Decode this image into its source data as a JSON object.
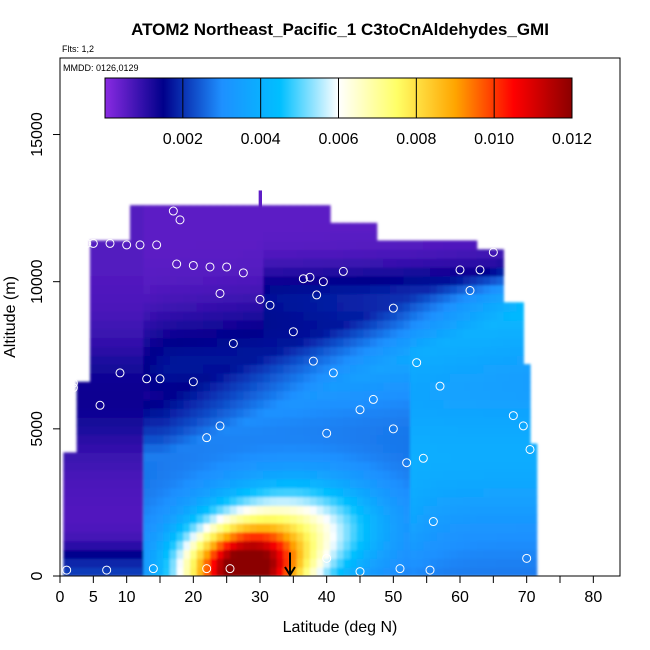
{
  "chart_data": {
    "type": "heatmap",
    "title": "ATOM2 Northeast_Pacific_1 C3toCnAldehydes_GMI",
    "flights_label": "Flts: 1,2",
    "mmdd_label": "MMDD: 0126,0129",
    "xlabel": "Latitude (deg N)",
    "ylabel": "Altitude (m)",
    "xlim": [
      0,
      84
    ],
    "ylim": [
      0,
      17600
    ],
    "x_ticks_major": [
      0,
      10,
      20,
      30,
      40,
      50,
      60,
      70,
      80
    ],
    "x_ticks_minor": [
      5,
      15,
      25,
      35,
      45,
      55,
      65,
      75
    ],
    "x_tick_labels": [
      "0",
      "5",
      "10",
      "20",
      "30",
      "40",
      "50",
      "60",
      "70",
      "80"
    ],
    "x_tick_label_values": [
      0,
      5,
      10,
      20,
      30,
      40,
      50,
      60,
      70,
      80
    ],
    "y_ticks": [
      0,
      5000,
      10000,
      15000
    ],
    "y_tick_labels": [
      "0",
      "5000",
      "10000",
      "15000"
    ],
    "colorbar": {
      "range": [
        0.0,
        0.012
      ],
      "ticks": [
        0.002,
        0.004,
        0.006,
        0.008,
        0.01,
        0.012
      ],
      "tick_labels": [
        "0.002",
        "0.004",
        "0.006",
        "0.008",
        "0.010",
        "0.012"
      ],
      "colors": [
        "#8a2be2",
        "#00008b",
        "#1e90ff",
        "#00bfff",
        "#ffffff",
        "#ffff66",
        "#ffa500",
        "#ff0000",
        "#8b0000"
      ]
    },
    "marker_latitude": 34.5,
    "grid": false,
    "legend": "colorbar top",
    "flight_points": [
      [
        1,
        200
      ],
      [
        7,
        200
      ],
      [
        14,
        250
      ],
      [
        22,
        250
      ],
      [
        25.5,
        250
      ],
      [
        40,
        600
      ],
      [
        45,
        150
      ],
      [
        51,
        250
      ],
      [
        55.5,
        200
      ],
      [
        70,
        600
      ],
      [
        2,
        6400
      ],
      [
        2,
        6550
      ],
      [
        6,
        5800
      ],
      [
        9,
        6900
      ],
      [
        13,
        6700
      ],
      [
        15,
        6700
      ],
      [
        20,
        6600
      ],
      [
        22,
        4700
      ],
      [
        24,
        5100
      ],
      [
        40,
        4850
      ],
      [
        45,
        5650
      ],
      [
        47,
        6000
      ],
      [
        50,
        5000
      ],
      [
        52,
        3850
      ],
      [
        54.5,
        4000
      ],
      [
        56,
        1850
      ],
      [
        4,
        11300
      ],
      [
        5,
        11300
      ],
      [
        7.5,
        11300
      ],
      [
        10,
        11250
      ],
      [
        12,
        11250
      ],
      [
        14.5,
        11250
      ],
      [
        17,
        12400
      ],
      [
        18,
        12100
      ],
      [
        17.5,
        10600
      ],
      [
        20,
        10550
      ],
      [
        22.5,
        10500
      ],
      [
        24,
        9600
      ],
      [
        25,
        10500
      ],
      [
        27.5,
        10300
      ],
      [
        30,
        9400
      ],
      [
        31.5,
        9200
      ],
      [
        26,
        7900
      ],
      [
        35,
        8300
      ],
      [
        36.5,
        10100
      ],
      [
        37.5,
        10150
      ],
      [
        38.5,
        9550
      ],
      [
        39.5,
        10000
      ],
      [
        42.5,
        10350
      ],
      [
        38,
        7300
      ],
      [
        41,
        6900
      ],
      [
        50,
        9100
      ],
      [
        53.5,
        7250
      ],
      [
        57,
        6450
      ],
      [
        60,
        10400
      ],
      [
        61.5,
        9700
      ],
      [
        63,
        10400
      ],
      [
        65,
        11000
      ],
      [
        68,
        5450
      ],
      [
        69.5,
        5100
      ],
      [
        70.5,
        4300
      ]
    ]
  }
}
